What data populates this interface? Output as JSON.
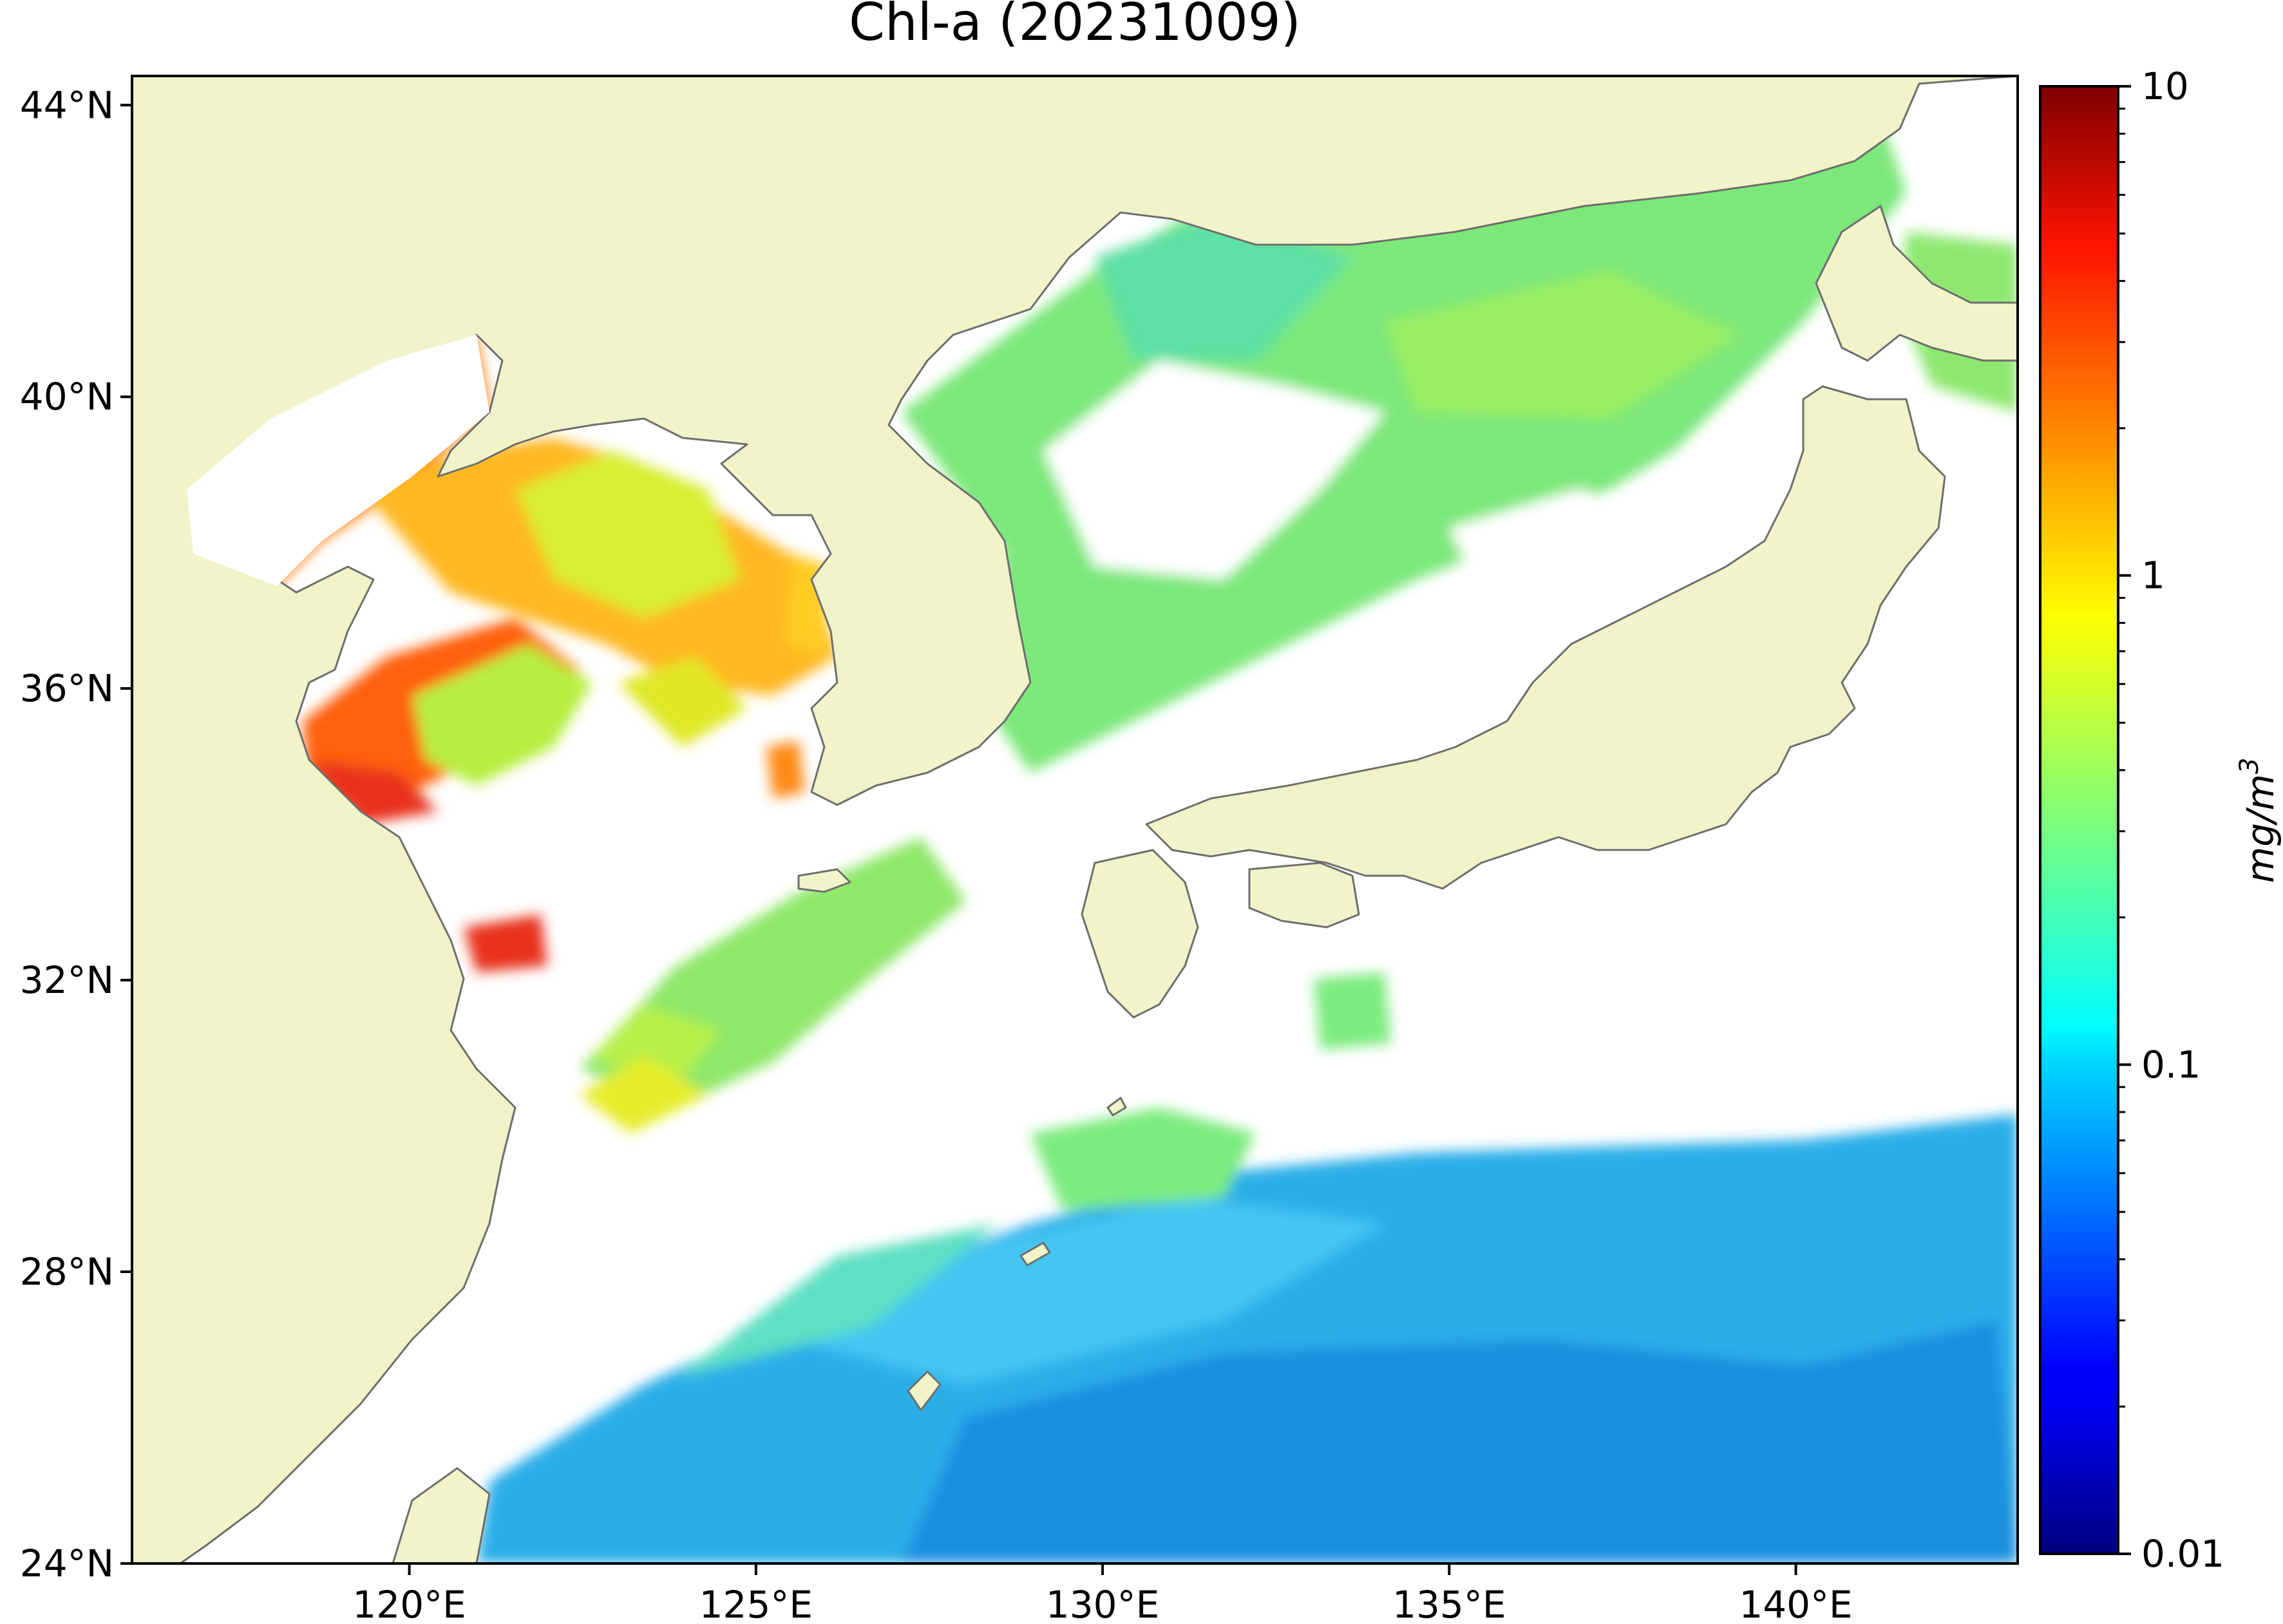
{
  "title": "Chl-a (20231009)",
  "map": {
    "lon_range": [
      116.0,
      143.2
    ],
    "lat_range": [
      24.0,
      44.4
    ],
    "lon_ticks": [
      {
        "value": 120,
        "label": "120°E"
      },
      {
        "value": 125,
        "label": "125°E"
      },
      {
        "value": 130,
        "label": "130°E"
      },
      {
        "value": 135,
        "label": "135°E"
      },
      {
        "value": 140,
        "label": "140°E"
      }
    ],
    "lat_ticks": [
      {
        "value": 44,
        "label": "44°N"
      },
      {
        "value": 40,
        "label": "40°N"
      },
      {
        "value": 36,
        "label": "36°N"
      },
      {
        "value": 32,
        "label": "32°N"
      },
      {
        "value": 28,
        "label": "28°N"
      },
      {
        "value": 24,
        "label": "24°N"
      }
    ],
    "colors": {
      "land": "#f0f4c8",
      "coastline": "#6e6e6e",
      "no_data": "#ffffff"
    }
  },
  "colorbar": {
    "label": "mg/m",
    "label_superscript": "3",
    "scale": "log",
    "range": [
      0.01,
      10
    ],
    "ticks": [
      {
        "value": 10,
        "label": "10"
      },
      {
        "value": 1,
        "label": "1"
      },
      {
        "value": 0.1,
        "label": "0.1"
      },
      {
        "value": 0.01,
        "label": "0.01"
      }
    ],
    "colormap": "jet"
  }
}
